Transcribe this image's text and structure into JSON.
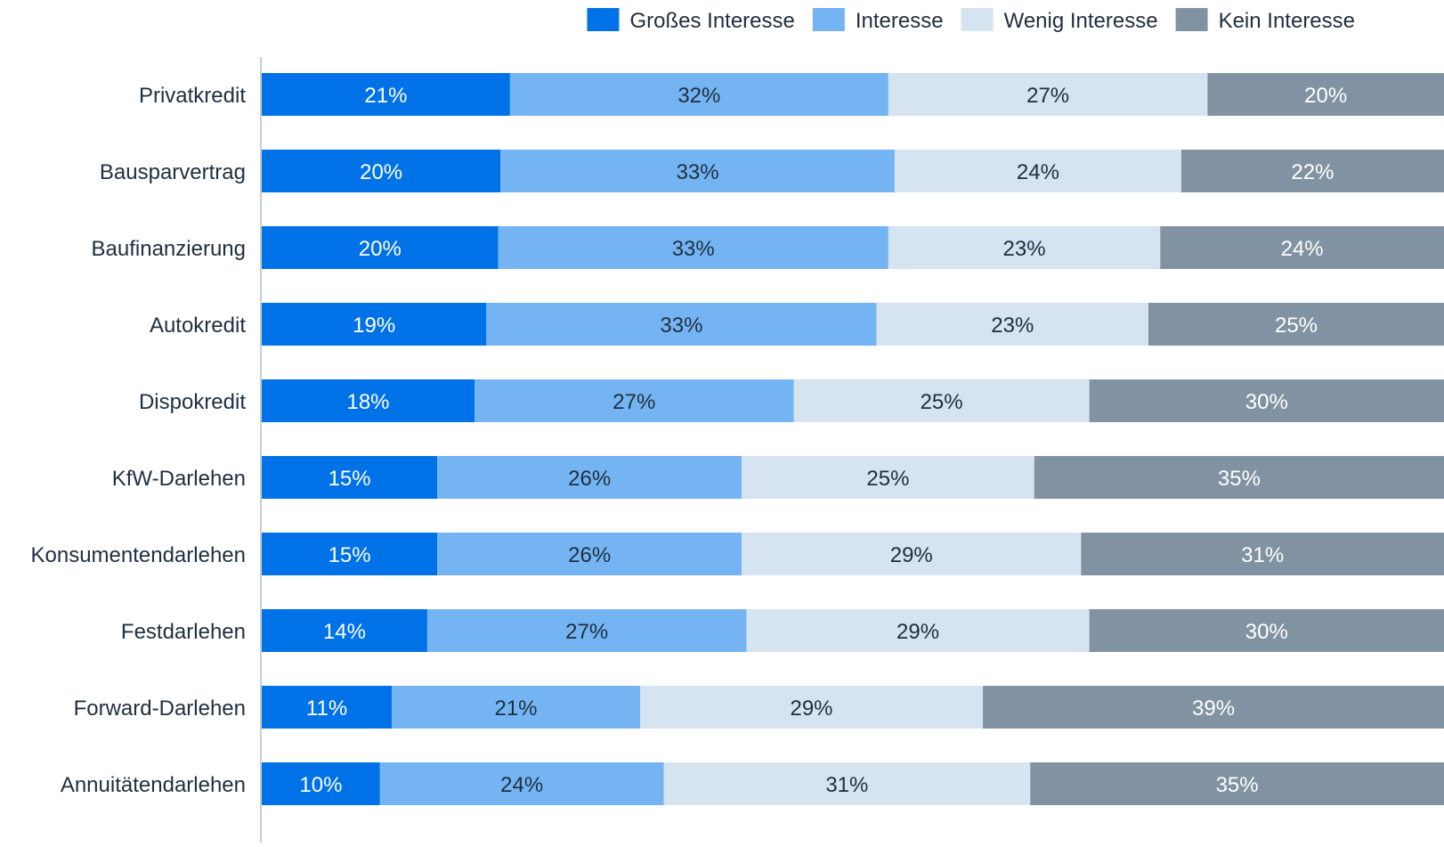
{
  "chart_data": {
    "type": "bar",
    "orientation": "horizontal",
    "stacked": true,
    "categories": [
      "Privatkredit",
      "Bausparvertrag",
      "Baufinanzierung",
      "Autokredit",
      "Dispokredit",
      "KfW-Darlehen",
      "Konsumentendarlehen",
      "Festdarlehen",
      "Forward-Darlehen",
      "Annuitätendarlehen"
    ],
    "series": [
      {
        "name": "Großes Interesse",
        "color": "#0072e8",
        "values": [
          21,
          20,
          20,
          19,
          18,
          15,
          15,
          14,
          11,
          10
        ]
      },
      {
        "name": "Interesse",
        "color": "#74b4f2",
        "values": [
          32,
          33,
          33,
          33,
          27,
          26,
          26,
          27,
          21,
          24
        ]
      },
      {
        "name": "Wenig Interesse",
        "color": "#d6e3f0",
        "values": [
          27,
          24,
          23,
          23,
          25,
          25,
          29,
          29,
          29,
          31
        ]
      },
      {
        "name": "Kein Interesse",
        "color": "#8193a2",
        "values": [
          20,
          22,
          24,
          25,
          30,
          35,
          31,
          30,
          39,
          35
        ]
      }
    ],
    "value_suffix": "%",
    "legend_position": "top-right",
    "grid": false
  }
}
